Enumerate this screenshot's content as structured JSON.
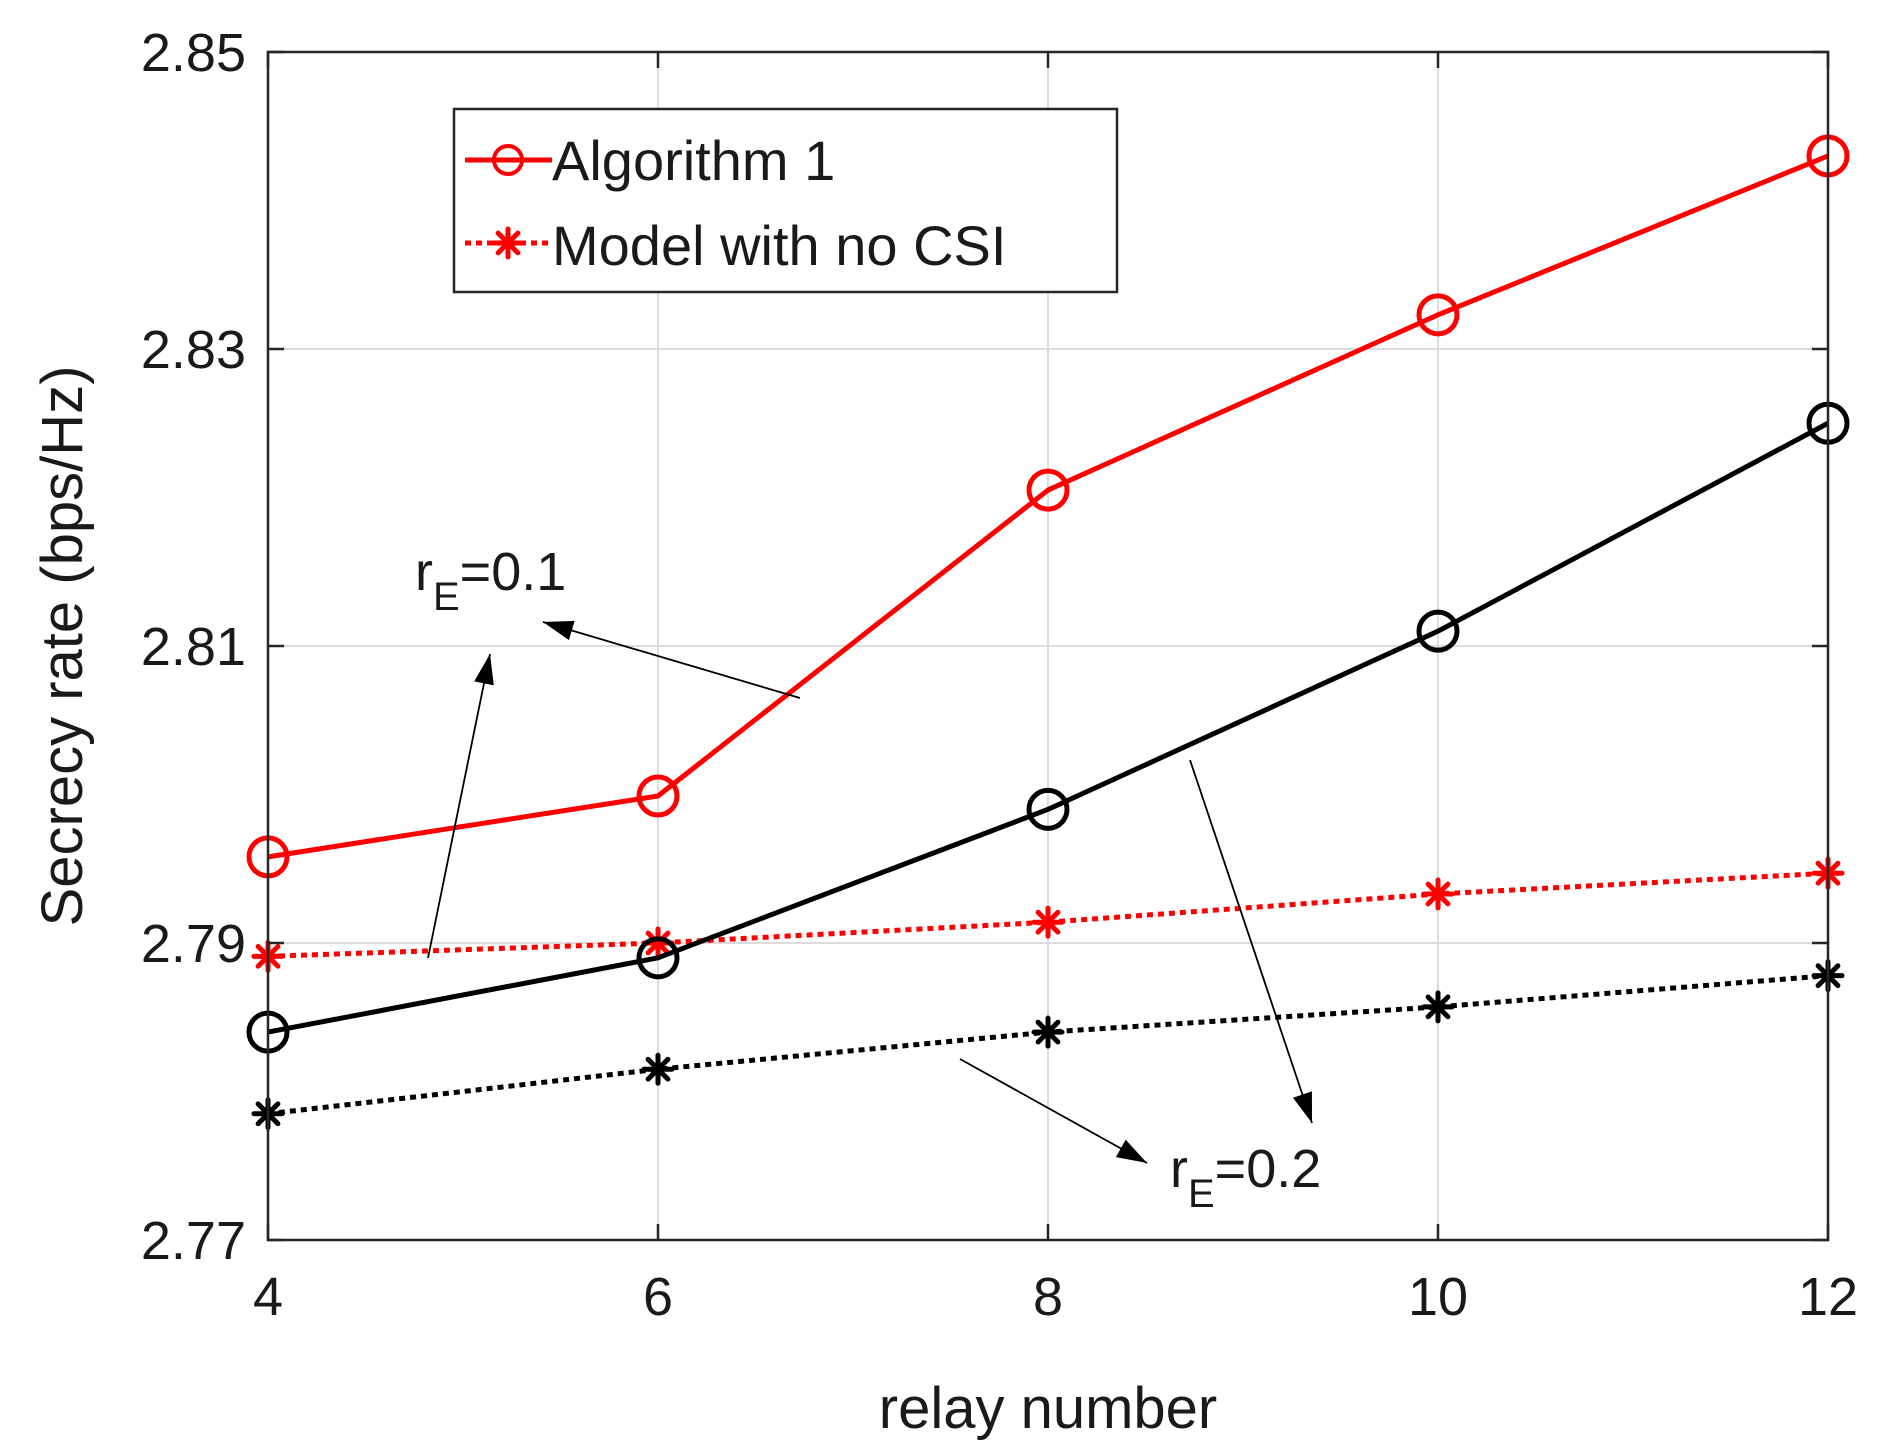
{
  "chart_data": {
    "type": "line",
    "title": "",
    "xlabel": "relay number",
    "ylabel": "Secrecy rate (bps/Hz)",
    "x": [
      4,
      6,
      8,
      10,
      12
    ],
    "xlim": [
      4,
      12
    ],
    "ylim": [
      2.77,
      2.85
    ],
    "xticks": [
      "4",
      "6",
      "8",
      "10",
      "12"
    ],
    "yticks": [
      "2.77",
      "2.79",
      "2.81",
      "2.83",
      "2.85"
    ],
    "grid": true,
    "legend_position": "top-left",
    "legend": [
      "Algorithm 1",
      "Model with no CSI"
    ],
    "series": [
      {
        "name": "Algorithm 1 (rE=0.1)",
        "color": "#ff0000",
        "style": "solid",
        "marker": "circle",
        "values": [
          2.7958,
          2.7999,
          2.8205,
          2.8323,
          2.843
        ]
      },
      {
        "name": "Model with no CSI (rE=0.1)",
        "color": "#ff0000",
        "style": "dotted",
        "marker": "asterisk",
        "values": [
          2.7891,
          2.79,
          2.7914,
          2.7933,
          2.7947
        ]
      },
      {
        "name": "Algorithm 1 (rE=0.2)",
        "color": "#000000",
        "style": "solid",
        "marker": "circle",
        "values": [
          2.784,
          2.789,
          2.799,
          2.811,
          2.825
        ]
      },
      {
        "name": "Model with no CSI (rE=0.2)",
        "color": "#000000",
        "style": "dotted",
        "marker": "asterisk",
        "values": [
          2.7785,
          2.7815,
          2.784,
          2.7857,
          2.7878
        ]
      }
    ],
    "annotations": [
      {
        "main": "r",
        "sub": "E",
        "rest": "=0.1"
      },
      {
        "main": "r",
        "sub": "E",
        "rest": "=0.2"
      }
    ]
  }
}
